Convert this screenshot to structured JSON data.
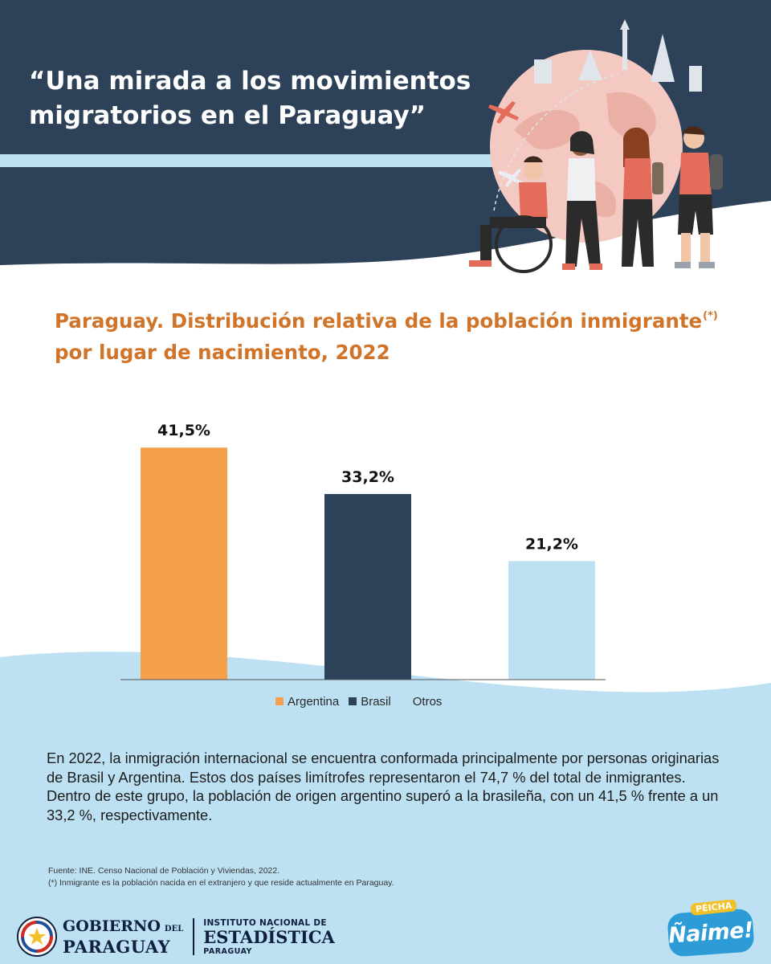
{
  "header": {
    "title": "“Una mirada a los movimientos migratorios en el Paraguay”"
  },
  "colors": {
    "navy": "#2d4159",
    "light_blue": "#bde1f2",
    "orange": "#f5a04a",
    "title_orange": "#d0742a"
  },
  "chart_title": {
    "text": "Paraguay. Distribución relativa de la población inmigrante",
    "superscript": "(*)",
    "line2": "por lugar de nacimiento, 2022"
  },
  "chart_data": {
    "type": "bar",
    "title": "Paraguay. Distribución relativa de la población inmigrante(*) por lugar de nacimiento, 2022",
    "categories": [
      "Argentina",
      "Brasil",
      "Otros"
    ],
    "values": [
      41.5,
      33.2,
      21.2
    ],
    "value_labels": [
      "41,5%",
      "33,2%",
      "21,2%"
    ],
    "colors": [
      "#f5a04a",
      "#2d4159",
      "#bde1f2"
    ],
    "ylim": [
      0,
      50
    ],
    "grid": false,
    "legend": "bottom-center"
  },
  "legend": {
    "items": [
      {
        "label": "Argentina",
        "color": "#f5a04a"
      },
      {
        "label": "Brasil",
        "color": "#2d4159"
      },
      {
        "label": "Otros",
        "color": "#bde1f2"
      }
    ]
  },
  "description": "En 2022, la inmigración internacional se encuentra conformada principalmente por personas originarias de Brasil y Argentina. Estos dos países limítrofes representaron el 74,7 % del total de inmigrantes. Dentro de este grupo, la población de origen argentino superó a la brasileña, con un 41,5 % frente a un 33,2 %, respectivamente.",
  "sources": {
    "line1": "Fuente: INE. Censo Nacional de Población y Viviendas, 2022.",
    "line2": "(*) Inmigrante es la población nacida en el extranjero y que reside actualmente en Paraguay."
  },
  "footer": {
    "gov_line1": "GOBIERNO",
    "gov_del": "DEL",
    "gov_line2": "PARAGUAY",
    "ine_line1": "INSTITUTO NACIONAL DE",
    "ine_line2": "ESTADÍSTICA",
    "ine_line3": "PARAGUAY",
    "naime_top": "PÉICHA",
    "naime_main": "Ñaime!"
  }
}
